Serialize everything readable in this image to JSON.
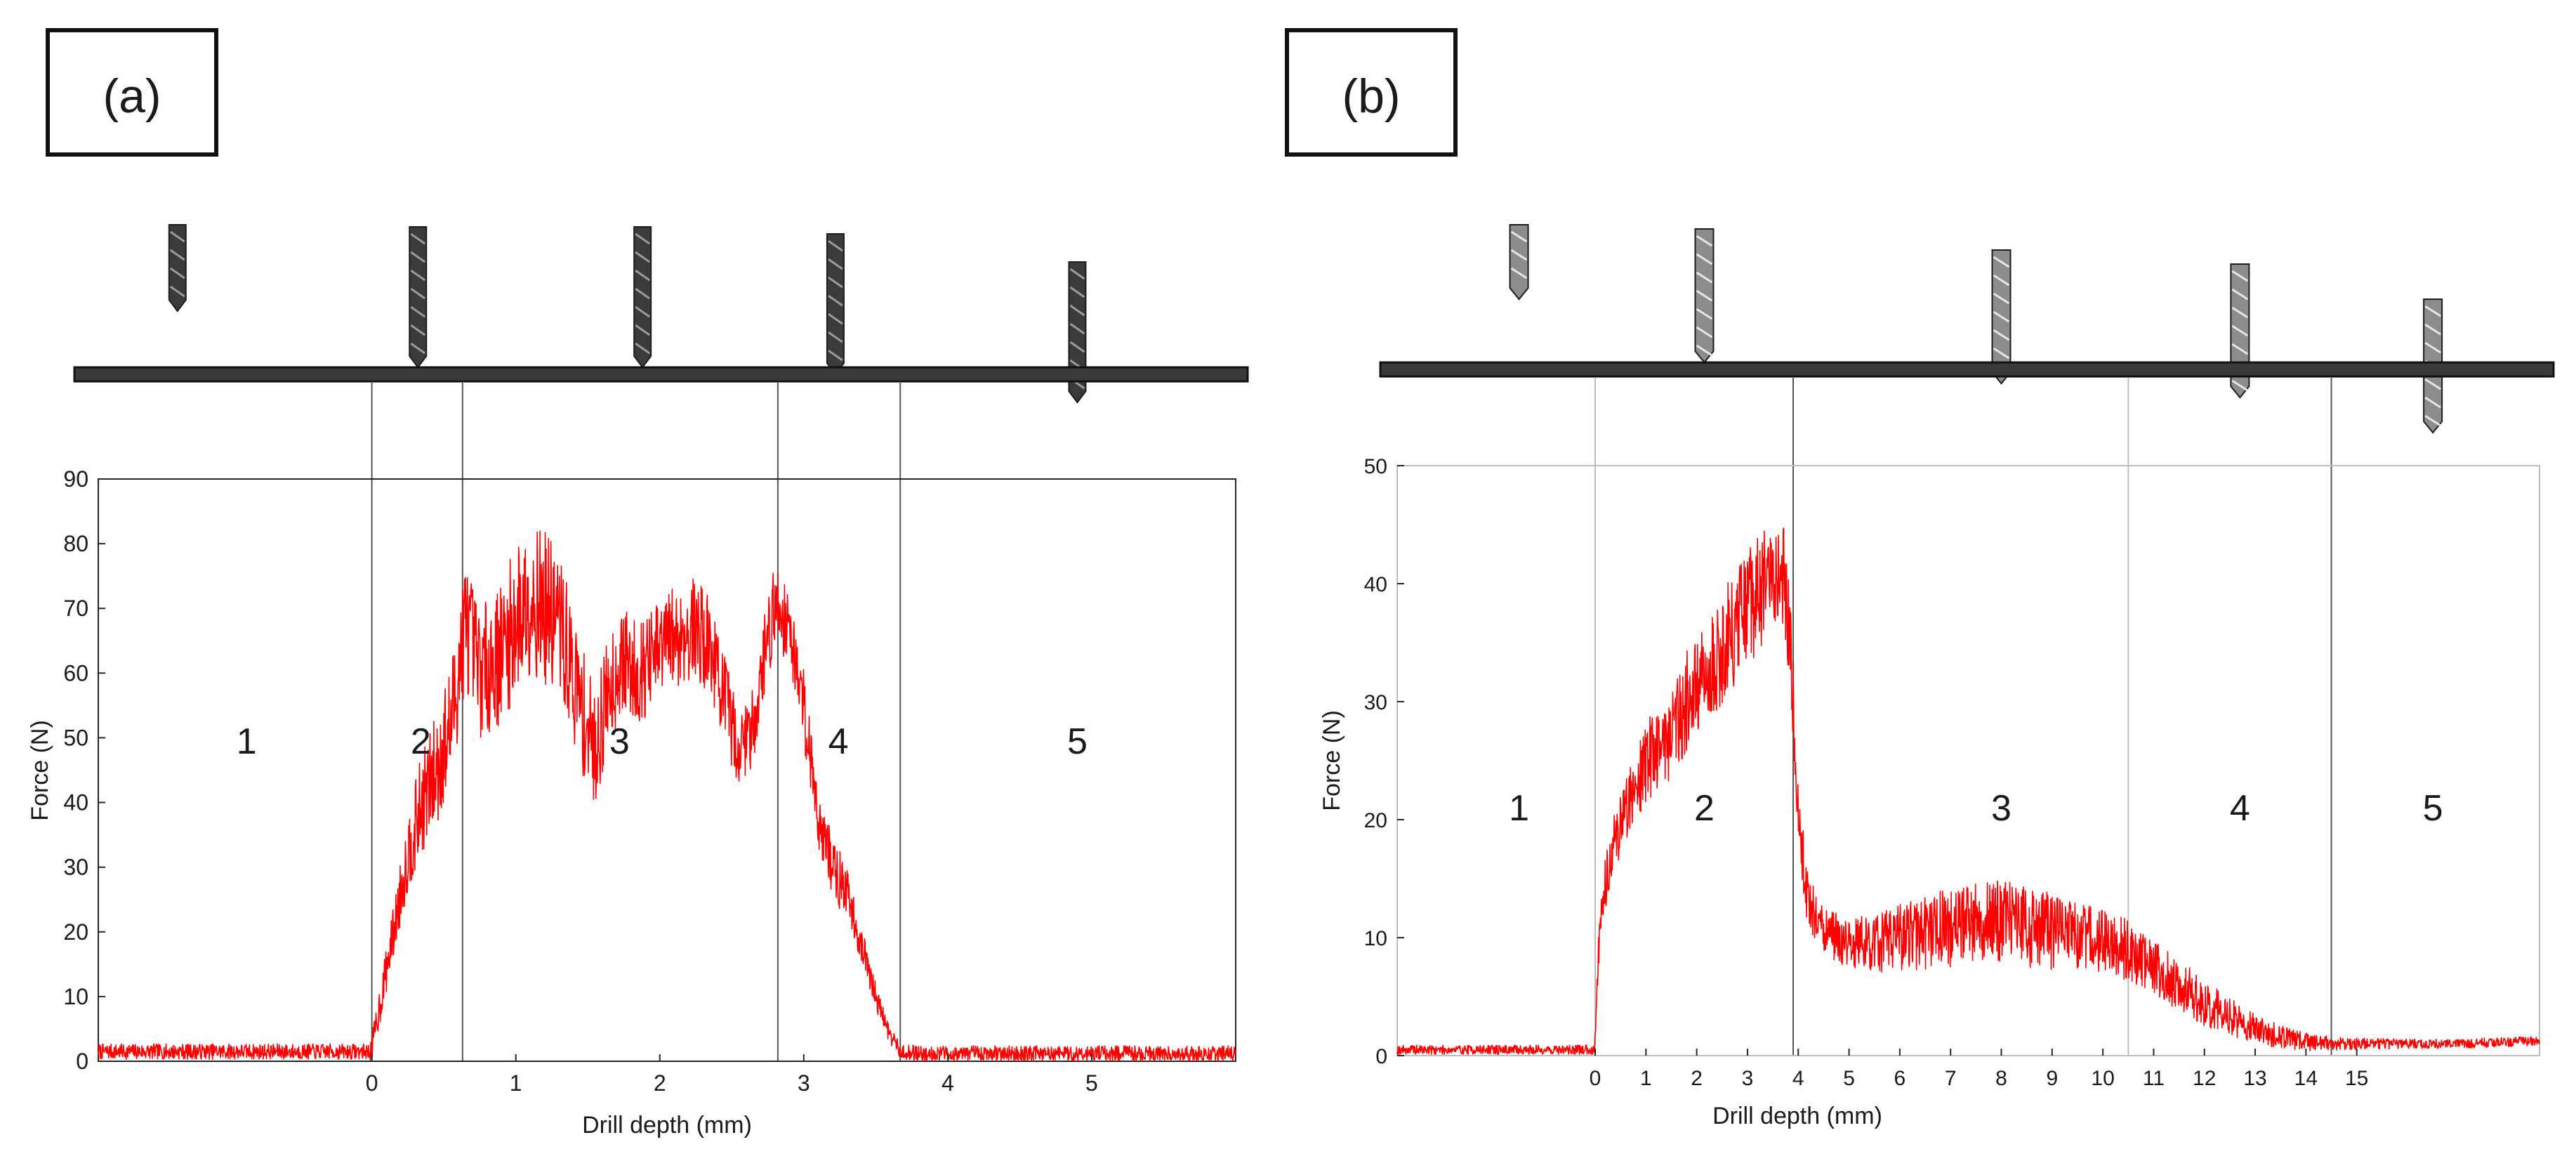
{
  "colors": {
    "trace": "#ff0000",
    "axis": "#262626",
    "grid_line": "#555555",
    "plate": "#3a3a3a"
  },
  "icons": [
    "drill-bit-icon",
    "workpiece-plate-icon"
  ],
  "chart_data": [
    {
      "panel_label": "(a)",
      "type": "line",
      "xlabel": "Drill depth (mm)",
      "ylabel": "Force (N)",
      "xlim": [
        -1.9,
        6.0
      ],
      "ylim": [
        0,
        90
      ],
      "xticks": [
        0,
        1,
        2,
        3,
        4,
        5
      ],
      "yticks": [
        0,
        10,
        20,
        30,
        40,
        50,
        60,
        70,
        80,
        90
      ],
      "stage_boundaries": [
        0,
        0.63,
        2.82,
        3.67
      ],
      "stage_labels": [
        {
          "text": "1",
          "x": -0.87,
          "y": 49.5
        },
        {
          "text": "2",
          "x": 0.34,
          "y": 49.5
        },
        {
          "text": "3",
          "x": 1.72,
          "y": 49.5
        },
        {
          "text": "4",
          "x": 3.24,
          "y": 49.5
        },
        {
          "text": "5",
          "x": 4.9,
          "y": 49.5
        }
      ],
      "drill_positions": [
        -1.35,
        0.32,
        1.88,
        3.22,
        4.9
      ],
      "series": [
        {
          "x": [
            -1.9,
            -1.0,
            -0.5,
            -0.02,
            0.0,
            0.05,
            0.15,
            0.25,
            0.35,
            0.45,
            0.55,
            0.65,
            0.75,
            0.9,
            1.0,
            1.1,
            1.2,
            1.3,
            1.45,
            1.55,
            1.65,
            1.75,
            1.85,
            1.95,
            2.05,
            2.15,
            2.25,
            2.35,
            2.45,
            2.55,
            2.65,
            2.75,
            2.82,
            2.9,
            3.0,
            3.1,
            3.2,
            3.3,
            3.4,
            3.5,
            3.6,
            3.67,
            3.8,
            4.5,
            5.2,
            6.0
          ],
          "y": [
            1.5,
            1.5,
            1.5,
            1.5,
            2,
            8,
            20,
            32,
            40,
            45,
            52,
            68,
            60,
            63,
            68,
            72,
            70,
            68,
            55,
            48,
            58,
            62,
            60,
            62,
            65,
            66,
            67,
            64,
            56,
            48,
            52,
            66,
            71,
            67,
            55,
            38,
            30,
            26,
            18,
            10,
            4,
            1.5,
            1.2,
            1.2,
            1.2,
            1.2
          ],
          "spread": [
            1.2,
            1.2,
            1.2,
            1.2,
            2,
            3,
            4,
            6,
            8,
            9,
            10,
            10,
            10,
            11,
            12,
            12,
            12,
            11,
            10,
            9,
            9,
            8,
            8,
            8,
            8,
            8,
            8,
            8,
            7,
            6,
            6,
            7,
            7,
            6,
            6,
            5,
            5,
            4,
            3,
            2,
            1.5,
            1.2,
            1.2,
            1.2,
            1.2,
            1.2
          ]
        }
      ]
    },
    {
      "panel_label": "(b)",
      "type": "line",
      "xlabel": "Drill depth (mm)",
      "ylabel": "Force (N)",
      "xlim": [
        -3.9,
        18.6
      ],
      "ylim": [
        0,
        50
      ],
      "xticks": [
        0,
        1,
        2,
        3,
        4,
        5,
        6,
        7,
        8,
        9,
        10,
        11,
        12,
        13,
        14,
        15
      ],
      "yticks": [
        0,
        10,
        20,
        30,
        40,
        50
      ],
      "stage_boundaries": [
        0,
        3.9,
        10.5,
        14.5
      ],
      "stage_labels": [
        {
          "text": "1",
          "x": -1.5,
          "y": 21
        },
        {
          "text": "2",
          "x": 2.15,
          "y": 21
        },
        {
          "text": "3",
          "x": 8.0,
          "y": 21
        },
        {
          "text": "4",
          "x": 12.7,
          "y": 21
        },
        {
          "text": "5",
          "x": 16.5,
          "y": 21
        }
      ],
      "drill_positions": [
        -1.5,
        2.15,
        8.0,
        12.7,
        16.5
      ],
      "series": [
        {
          "x": [
            -3.9,
            -2.0,
            -0.5,
            -0.02,
            0.0,
            0.1,
            0.3,
            0.6,
            1.0,
            1.4,
            1.8,
            2.2,
            2.6,
            3.0,
            3.4,
            3.7,
            3.85,
            4.0,
            4.2,
            4.5,
            5.0,
            5.5,
            6.0,
            6.5,
            7.0,
            7.5,
            8.0,
            8.5,
            9.0,
            9.5,
            10.0,
            10.5,
            11.0,
            11.5,
            12.0,
            12.5,
            13.0,
            13.5,
            14.0,
            14.5,
            15.0,
            16.0,
            17.0,
            18.2
          ],
          "y": [
            0.5,
            0.5,
            0.5,
            0.5,
            2,
            12,
            17,
            21,
            25,
            27,
            30,
            32,
            35,
            38,
            40,
            41,
            35,
            20,
            13,
            10.5,
            9.5,
            9.5,
            10,
            10.5,
            11,
            11.5,
            11.5,
            11,
            10.5,
            10,
            9.5,
            9,
            7.5,
            6,
            4.5,
            3.3,
            2.3,
            1.6,
            1.2,
            1,
            1,
            1,
            1,
            1.2
          ],
          "spread": [
            0.4,
            0.4,
            0.4,
            0.4,
            1,
            2,
            2.5,
            3,
            3.5,
            4,
            4.5,
            4.5,
            5,
            5,
            5,
            4.5,
            4,
            3,
            2.5,
            2,
            2.2,
            2.5,
            2.8,
            3.2,
            3.5,
            3.6,
            3.6,
            3.5,
            3.3,
            3,
            2.8,
            2.6,
            2.4,
            2.2,
            2,
            1.6,
            1.3,
            1,
            0.8,
            0.6,
            0.5,
            0.4,
            0.4,
            0.4
          ]
        }
      ]
    }
  ]
}
